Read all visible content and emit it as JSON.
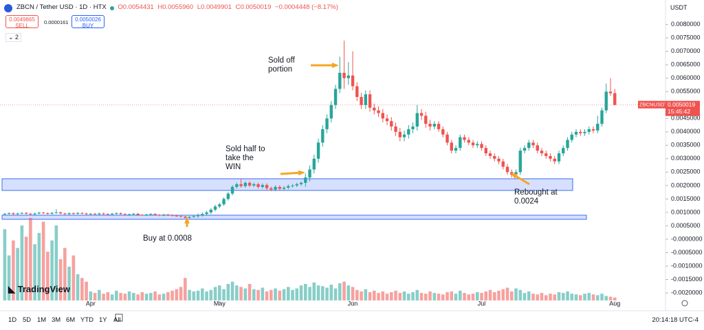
{
  "header": {
    "symbol": "ZBCN / Tether USD · 1D · HTX",
    "open": "O0.0054431",
    "high": "H0.0055960",
    "low": "L0.0049901",
    "close": "C0.0050019",
    "change": "−0.0004448 (−8.17%)",
    "sell_price": "0.0049865",
    "sell": "SELL",
    "spread": "0.0000161",
    "buy_price": "0.0050026",
    "buy": "BUY",
    "indicators": "2"
  },
  "currency": "USDT",
  "price_tag": {
    "symbol": "ZBCNUSDT",
    "price": "0.0050019",
    "countdown": "15:45:42"
  },
  "timeframes": [
    "1D",
    "5D",
    "1M",
    "3M",
    "6M",
    "YTD",
    "1Y",
    "All"
  ],
  "clock": "20:14:18 UTC-4",
  "logo": "TradingView",
  "chart_data": {
    "type": "candlestick",
    "up_color": "#26a69a",
    "down_color": "#ef5350",
    "annotations": [
      "Sold off portion",
      "Sold half to take the WIN",
      "Rebought at 0.0024",
      "Buy at 0.0008"
    ],
    "xlim": [
      -1.1,
      153.8
    ],
    "xticks": [
      {
        "value": 20,
        "label": "Apr"
      },
      {
        "value": 50,
        "label": "May"
      },
      {
        "value": 81,
        "label": "Jun"
      },
      {
        "value": 111,
        "label": "Jul"
      },
      {
        "value": 142,
        "label": "Aug"
      }
    ],
    "ylim": [
      -0.00228,
      0.0084
    ],
    "yticks": [
      {
        "value": 0.008,
        "label": "0.0080000"
      },
      {
        "value": 0.0075,
        "label": "0.0075000"
      },
      {
        "value": 0.007,
        "label": "0.0070000"
      },
      {
        "value": 0.0065,
        "label": "0.0065000"
      },
      {
        "value": 0.006,
        "label": "0.0060000"
      },
      {
        "value": 0.0055,
        "label": "0.0055000"
      },
      {
        "value": 0.005,
        "label": "0.0050000"
      },
      {
        "value": 0.0045,
        "label": "0.0045000"
      },
      {
        "value": 0.004,
        "label": "0.0040000"
      },
      {
        "value": 0.0035,
        "label": "0.0035000"
      },
      {
        "value": 0.003,
        "label": "0.0030000"
      },
      {
        "value": 0.0025,
        "label": "0.0025000"
      },
      {
        "value": 0.002,
        "label": "0.0020000"
      },
      {
        "value": 0.0015,
        "label": "0.0015000"
      },
      {
        "value": 0.001,
        "label": "0.0010000"
      },
      {
        "value": 0.0005,
        "label": "0.0005000"
      },
      {
        "value": 0,
        "label": "-0.0000000"
      },
      {
        "value": -0.0005,
        "label": "-0.0005000"
      },
      {
        "value": -0.001,
        "label": "-0.0010000"
      },
      {
        "value": -0.0015,
        "label": "-0.0015000"
      },
      {
        "value": -0.002,
        "label": "-0.0020000"
      }
    ],
    "open": [
      0.00094,
      0.00095,
      0.00097,
      0.00094,
      0.00096,
      0.00098,
      0.00095,
      0.00093,
      0.00096,
      0.00099,
      0.00097,
      0.00095,
      0.00098,
      0.001,
      0.00096,
      0.00094,
      0.00097,
      0.00095,
      0.00098,
      0.00096,
      0.00094,
      0.00095,
      0.00093,
      0.00096,
      0.00094,
      0.00092,
      0.00095,
      0.00097,
      0.00094,
      0.00092,
      0.00093,
      0.00095,
      0.00091,
      0.0009,
      0.00092,
      0.00094,
      0.00091,
      0.00089,
      0.00092,
      0.0009,
      0.00088,
      0.00086,
      0.00084,
      0.0008,
      0.00083,
      0.00086,
      0.0009,
      0.00094,
      0.001,
      0.0011,
      0.00122,
      0.0013,
      0.0015,
      0.0017,
      0.00195,
      0.00205,
      0.00198,
      0.0021,
      0.002,
      0.00205,
      0.00195,
      0.00202,
      0.0019,
      0.00185,
      0.00195,
      0.00188,
      0.00192,
      0.00198,
      0.002,
      0.00205,
      0.0021,
      0.0023,
      0.0026,
      0.003,
      0.0036,
      0.0041,
      0.0045,
      0.005,
      0.0056,
      0.0062,
      0.006,
      0.0061,
      0.0057,
      0.0053,
      0.005,
      0.0054,
      0.0049,
      0.0048,
      0.0047,
      0.0045,
      0.0044,
      0.0042,
      0.004,
      0.0038,
      0.0039,
      0.0041,
      0.0042,
      0.0047,
      0.0046,
      0.0043,
      0.0042,
      0.0043,
      0.0041,
      0.0039,
      0.0036,
      0.0033,
      0.0034,
      0.0038,
      0.0037,
      0.0036,
      0.0035,
      0.00355,
      0.0034,
      0.0032,
      0.0031,
      0.003,
      0.0029,
      0.0027,
      0.0025,
      0.0024,
      0.0025,
      0.0033,
      0.0034,
      0.0036,
      0.0035,
      0.0033,
      0.0032,
      0.0031,
      0.003,
      0.0029,
      0.0032,
      0.0034,
      0.0037,
      0.0039,
      0.004,
      0.00395,
      0.004,
      0.0041,
      0.00405,
      0.0043,
      0.0048,
      0.0055,
      0.0054431
    ],
    "high": [
      0.00098,
      0.001,
      0.001,
      0.00099,
      0.00101,
      0.00101,
      0.00098,
      0.00099,
      0.00102,
      0.00102,
      0.001,
      0.00101,
      0.00112,
      0.00103,
      0.00099,
      0.001,
      0.001,
      0.00101,
      0.00101,
      0.00099,
      0.00098,
      0.00098,
      0.00099,
      0.00099,
      0.00097,
      0.00098,
      0.001,
      0.001,
      0.00097,
      0.00096,
      0.00098,
      0.00098,
      0.00094,
      0.00095,
      0.00097,
      0.00097,
      0.00094,
      0.00095,
      0.00095,
      0.00093,
      0.00091,
      0.00089,
      0.00087,
      0.00086,
      0.00089,
      0.00096,
      0.001,
      0.00106,
      0.00116,
      0.00128,
      0.00136,
      0.00156,
      0.00176,
      0.00201,
      0.00211,
      0.00225,
      0.00216,
      0.00216,
      0.00211,
      0.00211,
      0.00208,
      0.00208,
      0.00196,
      0.00201,
      0.00201,
      0.00198,
      0.00204,
      0.00206,
      0.00211,
      0.00216,
      0.00245,
      0.00275,
      0.00315,
      0.00375,
      0.00425,
      0.00465,
      0.00515,
      0.00575,
      0.0068,
      0.0074,
      0.0066,
      0.007,
      0.00585,
      0.00545,
      0.00555,
      0.00555,
      0.00505,
      0.00495,
      0.00485,
      0.00465,
      0.00455,
      0.00435,
      0.00415,
      0.00405,
      0.00425,
      0.00435,
      0.005,
      0.00485,
      0.00475,
      0.00445,
      0.0044,
      0.0044,
      0.0042,
      0.004,
      0.0037,
      0.0035,
      0.0039,
      0.0039,
      0.0038,
      0.0037,
      0.00365,
      0.00365,
      0.0035,
      0.0033,
      0.0032,
      0.0031,
      0.003,
      0.0028,
      0.0026,
      0.0026,
      0.0034,
      0.0035,
      0.0037,
      0.0037,
      0.0036,
      0.0034,
      0.0033,
      0.0032,
      0.0031,
      0.0033,
      0.0035,
      0.0038,
      0.004,
      0.0041,
      0.0041,
      0.0041,
      0.0042,
      0.0042,
      0.0046,
      0.0049,
      0.0058,
      0.006,
      0.005596
    ],
    "low": [
      0.00091,
      0.00092,
      0.00091,
      0.00091,
      0.00093,
      0.00092,
      0.0009,
      0.0009,
      0.00093,
      0.00094,
      0.00092,
      0.00092,
      0.00095,
      0.00093,
      0.00091,
      0.00091,
      0.00092,
      0.00092,
      0.00093,
      0.00091,
      0.00091,
      0.0009,
      0.0009,
      0.00091,
      0.00089,
      0.00089,
      0.00092,
      0.00091,
      0.00089,
      0.00089,
      0.0009,
      0.00088,
      0.00087,
      0.00087,
      0.00089,
      0.00088,
      0.00086,
      0.00086,
      0.00087,
      0.00085,
      0.00083,
      0.00081,
      0.00077,
      0.00077,
      0.0008,
      0.0008,
      0.00084,
      0.00088,
      0.00094,
      0.00104,
      0.00116,
      0.00124,
      0.00144,
      0.00164,
      0.00189,
      0.00192,
      0.00192,
      0.00194,
      0.00194,
      0.00189,
      0.00189,
      0.00184,
      0.00179,
      0.00179,
      0.00182,
      0.00182,
      0.00186,
      0.00192,
      0.00194,
      0.00199,
      0.00195,
      0.00215,
      0.00245,
      0.00285,
      0.00345,
      0.00395,
      0.00435,
      0.00485,
      0.00545,
      0.0056,
      0.00575,
      0.00555,
      0.00515,
      0.00485,
      0.00485,
      0.00475,
      0.00465,
      0.00455,
      0.00435,
      0.00425,
      0.00405,
      0.00385,
      0.00365,
      0.00365,
      0.00375,
      0.00395,
      0.00405,
      0.00445,
      0.00415,
      0.00405,
      0.0041,
      0.004,
      0.0038,
      0.0035,
      0.0032,
      0.0032,
      0.0033,
      0.0036,
      0.0035,
      0.0034,
      0.0034,
      0.0033,
      0.0031,
      0.003,
      0.0029,
      0.0028,
      0.0026,
      0.0024,
      0.0023,
      0.0023,
      0.0024,
      0.0032,
      0.0033,
      0.0034,
      0.0032,
      0.0031,
      0.003,
      0.0029,
      0.0028,
      0.0028,
      0.0031,
      0.0033,
      0.0036,
      0.0038,
      0.00385,
      0.00385,
      0.0039,
      0.00395,
      0.00395,
      0.0042,
      0.0047,
      0.00534,
      0.0049901
    ],
    "close": [
      0.00095,
      0.00097,
      0.00094,
      0.00096,
      0.00098,
      0.00095,
      0.00093,
      0.00096,
      0.00099,
      0.00097,
      0.00095,
      0.00098,
      0.001,
      0.00096,
      0.00094,
      0.00097,
      0.00095,
      0.00098,
      0.00096,
      0.00094,
      0.00095,
      0.00093,
      0.00096,
      0.00094,
      0.00092,
      0.00095,
      0.00097,
      0.00094,
      0.00092,
      0.00093,
      0.00095,
      0.00091,
      0.0009,
      0.00092,
      0.00094,
      0.00091,
      0.00089,
      0.00092,
      0.0009,
      0.00088,
      0.00086,
      0.00084,
      0.0008,
      0.00083,
      0.00086,
      0.0009,
      0.00094,
      0.001,
      0.0011,
      0.00122,
      0.0013,
      0.0015,
      0.0017,
      0.00195,
      0.00205,
      0.00198,
      0.0021,
      0.002,
      0.00205,
      0.00195,
      0.00202,
      0.0019,
      0.00185,
      0.00195,
      0.00188,
      0.00192,
      0.00198,
      0.002,
      0.00205,
      0.0021,
      0.0023,
      0.0026,
      0.003,
      0.0036,
      0.0041,
      0.0045,
      0.005,
      0.0056,
      0.0062,
      0.006,
      0.0061,
      0.0057,
      0.0053,
      0.005,
      0.0054,
      0.0049,
      0.0048,
      0.0047,
      0.0045,
      0.0044,
      0.0042,
      0.004,
      0.0038,
      0.0039,
      0.0041,
      0.0042,
      0.0047,
      0.0046,
      0.0043,
      0.0042,
      0.0043,
      0.0041,
      0.0039,
      0.0036,
      0.0033,
      0.0034,
      0.0038,
      0.0037,
      0.0036,
      0.0035,
      0.00355,
      0.0034,
      0.0032,
      0.0031,
      0.003,
      0.0029,
      0.0027,
      0.0025,
      0.0024,
      0.0025,
      0.0033,
      0.0034,
      0.0036,
      0.0035,
      0.0033,
      0.0032,
      0.0031,
      0.003,
      0.0029,
      0.0032,
      0.0034,
      0.0037,
      0.0039,
      0.004,
      0.00395,
      0.004,
      0.0041,
      0.00405,
      0.0043,
      0.0048,
      0.0055,
      0.00544,
      0.0050019
    ],
    "volume": [
      95,
      60,
      80,
      70,
      100,
      85,
      110,
      75,
      90,
      105,
      65,
      80,
      100,
      55,
      70,
      45,
      60,
      35,
      30,
      25,
      12,
      10,
      14,
      9,
      11,
      8,
      13,
      10,
      9,
      12,
      10,
      8,
      11,
      9,
      10,
      12,
      8,
      9,
      11,
      13,
      15,
      18,
      30,
      14,
      12,
      13,
      16,
      12,
      14,
      18,
      20,
      15,
      22,
      25,
      20,
      18,
      16,
      22,
      15,
      14,
      17,
      12,
      14,
      16,
      13,
      15,
      18,
      14,
      16,
      20,
      22,
      18,
      24,
      20,
      19,
      17,
      21,
      16,
      23,
      25,
      20,
      18,
      14,
      12,
      15,
      11,
      13,
      10,
      12,
      9,
      11,
      13,
      10,
      12,
      9,
      11,
      14,
      10,
      9,
      12,
      10,
      9,
      8,
      11,
      12,
      9,
      13,
      10,
      8,
      9,
      11,
      10,
      12,
      14,
      11,
      13,
      15,
      17,
      12,
      16,
      14,
      10,
      12,
      9,
      8,
      10,
      7,
      9,
      8,
      11,
      10,
      12,
      9,
      8,
      7,
      9,
      10,
      8,
      7,
      9,
      6,
      5,
      4
    ]
  }
}
